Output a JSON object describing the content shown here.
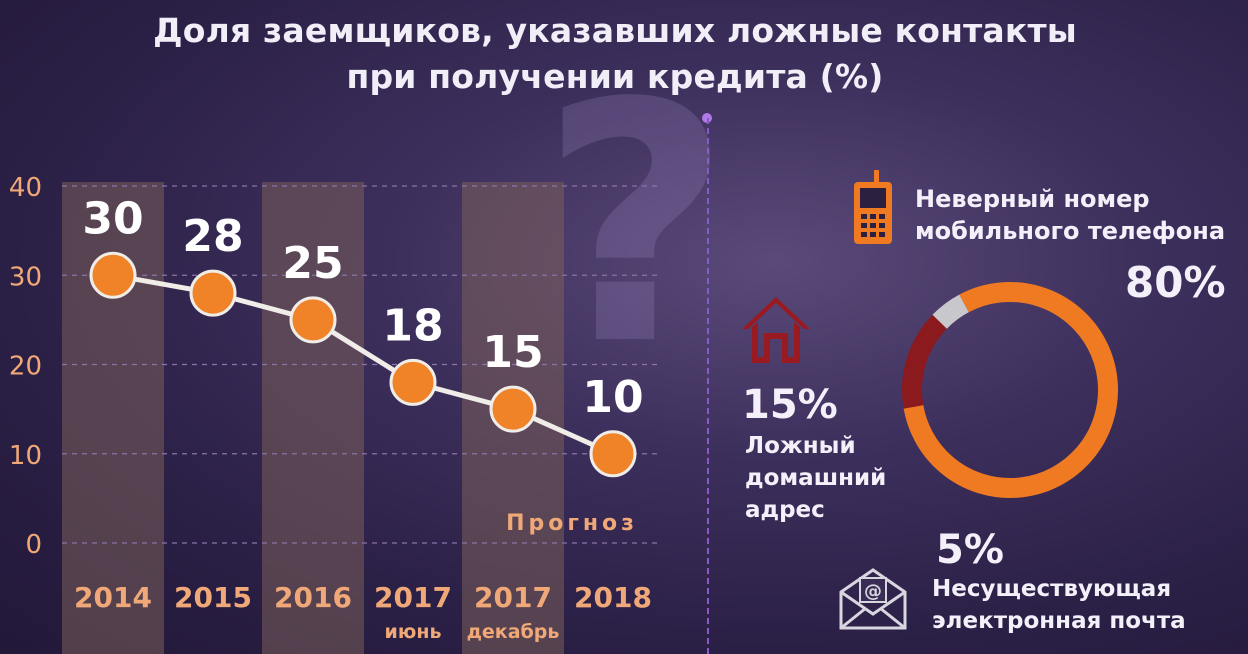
{
  "title_line1": "Доля заемщиков, указавших ложные контакты",
  "title_line2": "при получении кредита (%)",
  "chart_data": [
    {
      "type": "line",
      "title": "Доля заемщиков, указавших ложные контакты при получении кредита (%)",
      "categories": [
        "2014",
        "2015",
        "2016",
        "2017",
        "2017",
        "2018"
      ],
      "sublabels": [
        "",
        "",
        "",
        "июнь",
        "декабрь",
        ""
      ],
      "values": [
        30,
        28,
        25,
        18,
        15,
        10
      ],
      "ylim": [
        0,
        40
      ],
      "yticks": [
        0,
        10,
        20,
        30,
        40
      ],
      "forecast_label": "Прогноз",
      "colors": {
        "line": "#f0ece8",
        "marker": "#f08228",
        "tick": "#f0a878",
        "band": "#7a5e5a"
      }
    },
    {
      "type": "pie",
      "categories": [
        "Неверный номер мобильного телефона",
        "Ложный домашний адрес",
        "Несуществующая электронная почта"
      ],
      "values": [
        80,
        15,
        5
      ],
      "colors": [
        "#f07a22",
        "#8a1a1e",
        "#c8c8cc"
      ]
    }
  ],
  "phone": {
    "label_line1": "Неверный номер",
    "label_line2": "мобильного телефона",
    "pct": "80%",
    "icon": "phone-icon"
  },
  "home": {
    "pct": "15%",
    "label_line1": "Ложный",
    "label_line2": "домашний",
    "label_line3": "адрес",
    "icon": "house-icon"
  },
  "mail": {
    "pct": "5%",
    "label_line1": "Несуществующая",
    "label_line2": "электронная почта",
    "icon": "envelope-icon",
    "symbol": "@"
  }
}
